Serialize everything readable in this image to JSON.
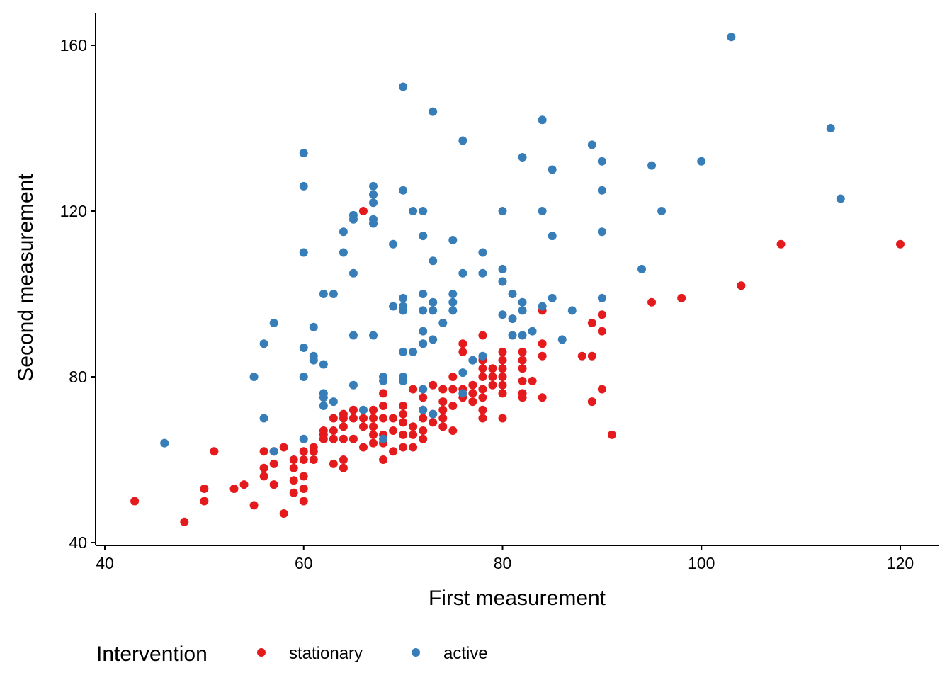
{
  "colors": {
    "stationary": "#E41A1C",
    "active": "#377EB8",
    "axis": "#000000",
    "background": "#FFFFFF"
  },
  "chart_data": {
    "type": "scatter",
    "title": "",
    "xlabel": "First measurement",
    "ylabel": "Second measurement",
    "xlim": [
      39,
      121
    ],
    "ylim": [
      39,
      168
    ],
    "xticks": [
      40,
      60,
      80,
      100,
      120
    ],
    "yticks": [
      40,
      80,
      120,
      160
    ],
    "grid": false,
    "legend": {
      "title": "Intervention",
      "position": "bottom",
      "entries": [
        "stationary",
        "active"
      ]
    },
    "series": [
      {
        "name": "stationary",
        "color": "#E41A1C",
        "points": [
          [
            43,
            50
          ],
          [
            48,
            45
          ],
          [
            50,
            53
          ],
          [
            50,
            50
          ],
          [
            51,
            62
          ],
          [
            53,
            53
          ],
          [
            54,
            54
          ],
          [
            55,
            49
          ],
          [
            56,
            62
          ],
          [
            56,
            58
          ],
          [
            56,
            56
          ],
          [
            57,
            62
          ],
          [
            57,
            59
          ],
          [
            57,
            54
          ],
          [
            58,
            63
          ],
          [
            58,
            47
          ],
          [
            59,
            60
          ],
          [
            59,
            58
          ],
          [
            59,
            55
          ],
          [
            59,
            52
          ],
          [
            60,
            62
          ],
          [
            60,
            60
          ],
          [
            60,
            56
          ],
          [
            60,
            53
          ],
          [
            60,
            50
          ],
          [
            61,
            63
          ],
          [
            61,
            62
          ],
          [
            61,
            60
          ],
          [
            62,
            67
          ],
          [
            62,
            66
          ],
          [
            62,
            65
          ],
          [
            63,
            70
          ],
          [
            63,
            67
          ],
          [
            63,
            65
          ],
          [
            63,
            59
          ],
          [
            64,
            71
          ],
          [
            64,
            70
          ],
          [
            64,
            68
          ],
          [
            64,
            65
          ],
          [
            64,
            60
          ],
          [
            64,
            58
          ],
          [
            65,
            72
          ],
          [
            65,
            70
          ],
          [
            65,
            65
          ],
          [
            66,
            120
          ],
          [
            66,
            70
          ],
          [
            66,
            68
          ],
          [
            66,
            63
          ],
          [
            67,
            72
          ],
          [
            67,
            70
          ],
          [
            67,
            68
          ],
          [
            67,
            66
          ],
          [
            67,
            64
          ],
          [
            68,
            76
          ],
          [
            68,
            73
          ],
          [
            68,
            70
          ],
          [
            68,
            66
          ],
          [
            68,
            64
          ],
          [
            68,
            60
          ],
          [
            69,
            70
          ],
          [
            69,
            67
          ],
          [
            69,
            62
          ],
          [
            70,
            73
          ],
          [
            70,
            71
          ],
          [
            70,
            69
          ],
          [
            70,
            66
          ],
          [
            70,
            63
          ],
          [
            71,
            77
          ],
          [
            71,
            68
          ],
          [
            71,
            66
          ],
          [
            71,
            63
          ],
          [
            72,
            75
          ],
          [
            72,
            72
          ],
          [
            72,
            70
          ],
          [
            72,
            67
          ],
          [
            72,
            65
          ],
          [
            73,
            78
          ],
          [
            73,
            71
          ],
          [
            73,
            69
          ],
          [
            74,
            77
          ],
          [
            74,
            74
          ],
          [
            74,
            72
          ],
          [
            74,
            70
          ],
          [
            74,
            68
          ],
          [
            75,
            80
          ],
          [
            75,
            77
          ],
          [
            75,
            73
          ],
          [
            75,
            67
          ],
          [
            76,
            88
          ],
          [
            76,
            86
          ],
          [
            76,
            77
          ],
          [
            76,
            75
          ],
          [
            77,
            78
          ],
          [
            77,
            76
          ],
          [
            77,
            74
          ],
          [
            78,
            90
          ],
          [
            78,
            84
          ],
          [
            78,
            82
          ],
          [
            78,
            80
          ],
          [
            78,
            77
          ],
          [
            78,
            75
          ],
          [
            78,
            72
          ],
          [
            78,
            70
          ],
          [
            79,
            82
          ],
          [
            79,
            80
          ],
          [
            79,
            78
          ],
          [
            80,
            86
          ],
          [
            80,
            84
          ],
          [
            80,
            82
          ],
          [
            80,
            80
          ],
          [
            80,
            78
          ],
          [
            80,
            76
          ],
          [
            80,
            70
          ],
          [
            82,
            86
          ],
          [
            82,
            84
          ],
          [
            82,
            82
          ],
          [
            82,
            79
          ],
          [
            82,
            76
          ],
          [
            82,
            75
          ],
          [
            83,
            79
          ],
          [
            84,
            96
          ],
          [
            84,
            88
          ],
          [
            84,
            85
          ],
          [
            84,
            75
          ],
          [
            88,
            85
          ],
          [
            89,
            93
          ],
          [
            89,
            85
          ],
          [
            89,
            74
          ],
          [
            90,
            95
          ],
          [
            90,
            91
          ],
          [
            90,
            77
          ],
          [
            91,
            66
          ],
          [
            95,
            98
          ],
          [
            98,
            99
          ],
          [
            104,
            102
          ],
          [
            108,
            112
          ],
          [
            120,
            112
          ]
        ]
      },
      {
        "name": "active",
        "color": "#377EB8",
        "points": [
          [
            46,
            64
          ],
          [
            55,
            80
          ],
          [
            56,
            88
          ],
          [
            56,
            70
          ],
          [
            57,
            93
          ],
          [
            57,
            62
          ],
          [
            60,
            134
          ],
          [
            60,
            126
          ],
          [
            60,
            110
          ],
          [
            60,
            87
          ],
          [
            60,
            80
          ],
          [
            60,
            65
          ],
          [
            61,
            92
          ],
          [
            61,
            85
          ],
          [
            61,
            84
          ],
          [
            62,
            100
          ],
          [
            62,
            83
          ],
          [
            62,
            76
          ],
          [
            62,
            75
          ],
          [
            62,
            73
          ],
          [
            63,
            100
          ],
          [
            63,
            74
          ],
          [
            64,
            115
          ],
          [
            64,
            110
          ],
          [
            65,
            119
          ],
          [
            65,
            118
          ],
          [
            65,
            105
          ],
          [
            65,
            90
          ],
          [
            65,
            78
          ],
          [
            66,
            72
          ],
          [
            67,
            126
          ],
          [
            67,
            124
          ],
          [
            67,
            122
          ],
          [
            67,
            118
          ],
          [
            67,
            117
          ],
          [
            67,
            90
          ],
          [
            68,
            80
          ],
          [
            68,
            79
          ],
          [
            68,
            65
          ],
          [
            69,
            112
          ],
          [
            69,
            97
          ],
          [
            70,
            150
          ],
          [
            70,
            125
          ],
          [
            70,
            99
          ],
          [
            70,
            97
          ],
          [
            70,
            96
          ],
          [
            70,
            86
          ],
          [
            70,
            80
          ],
          [
            70,
            79
          ],
          [
            71,
            120
          ],
          [
            71,
            86
          ],
          [
            72,
            120
          ],
          [
            72,
            114
          ],
          [
            72,
            100
          ],
          [
            72,
            96
          ],
          [
            72,
            91
          ],
          [
            72,
            88
          ],
          [
            72,
            77
          ],
          [
            72,
            72
          ],
          [
            73,
            144
          ],
          [
            73,
            108
          ],
          [
            73,
            98
          ],
          [
            73,
            96
          ],
          [
            73,
            89
          ],
          [
            73,
            71
          ],
          [
            74,
            93
          ],
          [
            75,
            113
          ],
          [
            75,
            100
          ],
          [
            75,
            98
          ],
          [
            75,
            96
          ],
          [
            76,
            137
          ],
          [
            76,
            105
          ],
          [
            76,
            81
          ],
          [
            76,
            76
          ],
          [
            77,
            84
          ],
          [
            78,
            110
          ],
          [
            78,
            105
          ],
          [
            78,
            85
          ],
          [
            80,
            120
          ],
          [
            80,
            106
          ],
          [
            80,
            103
          ],
          [
            80,
            95
          ],
          [
            81,
            100
          ],
          [
            81,
            94
          ],
          [
            81,
            90
          ],
          [
            82,
            133
          ],
          [
            82,
            98
          ],
          [
            82,
            96
          ],
          [
            82,
            90
          ],
          [
            83,
            91
          ],
          [
            84,
            142
          ],
          [
            84,
            120
          ],
          [
            84,
            97
          ],
          [
            85,
            130
          ],
          [
            85,
            114
          ],
          [
            85,
            99
          ],
          [
            86,
            89
          ],
          [
            87,
            96
          ],
          [
            89,
            136
          ],
          [
            90,
            132
          ],
          [
            90,
            125
          ],
          [
            90,
            115
          ],
          [
            90,
            99
          ],
          [
            94,
            106
          ],
          [
            95,
            131
          ],
          [
            96,
            120
          ],
          [
            100,
            132
          ],
          [
            103,
            162
          ],
          [
            113,
            140
          ],
          [
            114,
            123
          ]
        ]
      }
    ]
  }
}
